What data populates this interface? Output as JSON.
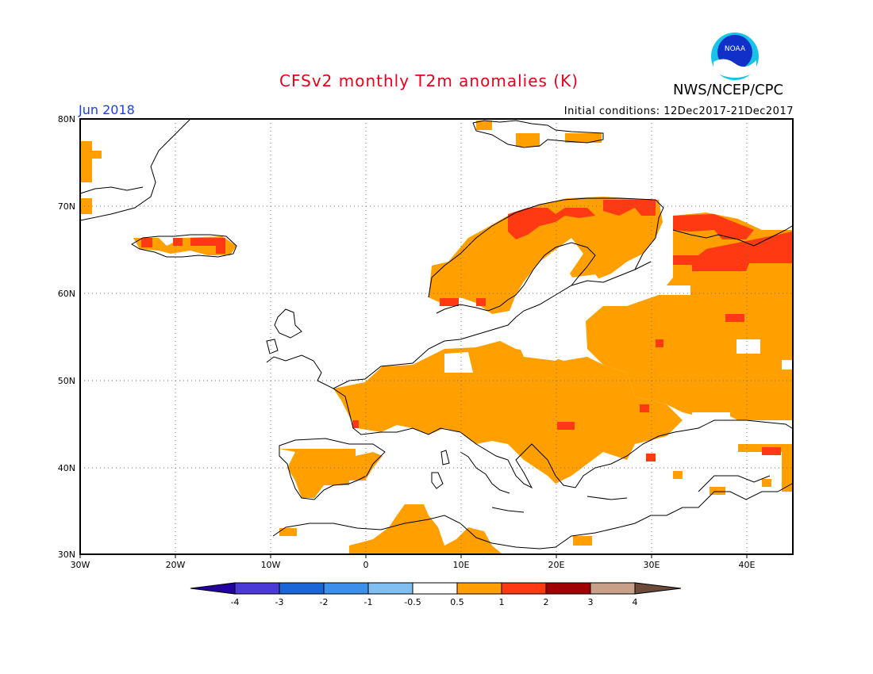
{
  "header": {
    "title": "CFSv2 monthly T2m anomalies (K)",
    "agency": "NWS/NCEP/CPC",
    "month": "Jun 2018",
    "initial_conditions": "Initial conditions: 12Dec2017-21Dec2017",
    "logo_text": "NOAA"
  },
  "map": {
    "lon_range": [
      -30,
      45
    ],
    "lat_range": [
      30,
      80
    ],
    "lon_ticks": [
      "30W",
      "20W",
      "10W",
      "0",
      "10E",
      "20E",
      "30E",
      "40E"
    ],
    "lat_ticks": [
      "30N",
      "40N",
      "50N",
      "60N",
      "70N",
      "80N"
    ],
    "grid": "dotted"
  },
  "colorbar": {
    "labels": [
      "-4",
      "-3",
      "-2",
      "-1",
      "-0.5",
      "0.5",
      "1",
      "2",
      "3",
      "4"
    ],
    "colors": [
      "#2400a0",
      "#4a3ad6",
      "#1a66d6",
      "#3a90ea",
      "#80bff2",
      "#ffffff",
      "#ff9f00",
      "#ff3a12",
      "#a10000",
      "#c8a08a",
      "#6e4a3a"
    ]
  }
}
